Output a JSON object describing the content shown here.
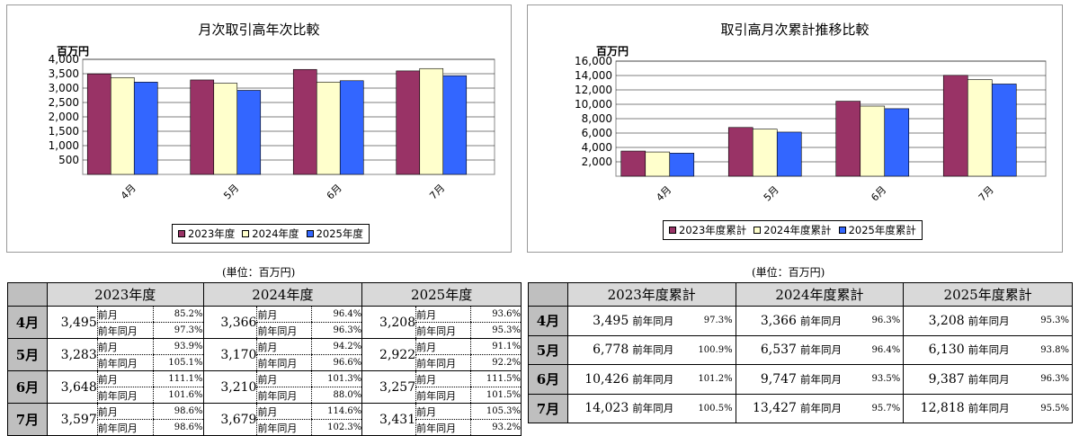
{
  "colors": {
    "series1": "#993366",
    "series2": "#ffffcc",
    "series3": "#3366ff"
  },
  "chart_data": [
    {
      "type": "bar",
      "title": "月次取引高年次比較",
      "ylabel": "百万円",
      "categories": [
        "4月",
        "5月",
        "6月",
        "7月"
      ],
      "ylim": [
        0,
        4000
      ],
      "yticks": [
        "4,000",
        "3,500",
        "3,000",
        "2,500",
        "2,000",
        "1,500",
        "1,000",
        "500"
      ],
      "ytick_values": [
        4000,
        3500,
        3000,
        2500,
        2000,
        1500,
        1000,
        500
      ],
      "series": [
        {
          "name": "2023年度",
          "values": [
            3495,
            3283,
            3648,
            3597
          ]
        },
        {
          "name": "2024年度",
          "values": [
            3366,
            3170,
            3210,
            3679
          ]
        },
        {
          "name": "2025年度",
          "values": [
            3208,
            2922,
            3257,
            3431
          ]
        }
      ],
      "grid": true,
      "legend": "bottom"
    },
    {
      "type": "bar",
      "title": "取引高月次累計推移比較",
      "ylabel": "百万円",
      "categories": [
        "4月",
        "5月",
        "6月",
        "7月"
      ],
      "ylim": [
        0,
        16000
      ],
      "yticks": [
        "16,000",
        "14,000",
        "12,000",
        "10,000",
        "8,000",
        "6,000",
        "4,000",
        "2,000"
      ],
      "ytick_values": [
        16000,
        14000,
        12000,
        10000,
        8000,
        6000,
        4000,
        2000
      ],
      "series": [
        {
          "name": "2023年度累計",
          "values": [
            3495,
            6778,
            10426,
            14023
          ]
        },
        {
          "name": "2024年度累計",
          "values": [
            3366,
            6537,
            9747,
            13427
          ]
        },
        {
          "name": "2025年度累計",
          "values": [
            3208,
            6130,
            9387,
            12818
          ]
        }
      ],
      "grid": true,
      "legend": "bottom"
    }
  ],
  "unit_note": "(単位：百万円)",
  "table1": {
    "headers": [
      "2023年度",
      "2024年度",
      "2025年度"
    ],
    "prev_label": "前月",
    "yoy_label": "前年同月",
    "rows": [
      {
        "month": "4月",
        "cells": [
          {
            "value": "3,495",
            "prev": "85.2%",
            "yoy": "97.3%"
          },
          {
            "value": "3,366",
            "prev": "96.4%",
            "yoy": "96.3%"
          },
          {
            "value": "3,208",
            "prev": "93.6%",
            "yoy": "95.3%"
          }
        ]
      },
      {
        "month": "5月",
        "cells": [
          {
            "value": "3,283",
            "prev": "93.9%",
            "yoy": "105.1%"
          },
          {
            "value": "3,170",
            "prev": "94.2%",
            "yoy": "96.6%"
          },
          {
            "value": "2,922",
            "prev": "91.1%",
            "yoy": "92.2%"
          }
        ]
      },
      {
        "month": "6月",
        "cells": [
          {
            "value": "3,648",
            "prev": "111.1%",
            "yoy": "101.6%"
          },
          {
            "value": "3,210",
            "prev": "101.3%",
            "yoy": "88.0%"
          },
          {
            "value": "3,257",
            "prev": "111.5%",
            "yoy": "101.5%"
          }
        ]
      },
      {
        "month": "7月",
        "cells": [
          {
            "value": "3,597",
            "prev": "98.6%",
            "yoy": "98.6%"
          },
          {
            "value": "3,679",
            "prev": "114.6%",
            "yoy": "102.3%"
          },
          {
            "value": "3,431",
            "prev": "105.3%",
            "yoy": "93.2%"
          }
        ]
      }
    ]
  },
  "table2": {
    "headers": [
      "2023年度累計",
      "2024年度累計",
      "2025年度累計"
    ],
    "yoy_label": "前年同月",
    "rows": [
      {
        "month": "4月",
        "cells": [
          {
            "value": "3,495",
            "yoy": "97.3%"
          },
          {
            "value": "3,366",
            "yoy": "96.3%"
          },
          {
            "value": "3,208",
            "yoy": "95.3%"
          }
        ]
      },
      {
        "month": "5月",
        "cells": [
          {
            "value": "6,778",
            "yoy": "100.9%"
          },
          {
            "value": "6,537",
            "yoy": "96.4%"
          },
          {
            "value": "6,130",
            "yoy": "93.8%"
          }
        ]
      },
      {
        "month": "6月",
        "cells": [
          {
            "value": "10,426",
            "yoy": "101.2%"
          },
          {
            "value": "9,747",
            "yoy": "93.5%"
          },
          {
            "value": "9,387",
            "yoy": "96.3%"
          }
        ]
      },
      {
        "month": "7月",
        "cells": [
          {
            "value": "14,023",
            "yoy": "100.5%"
          },
          {
            "value": "13,427",
            "yoy": "95.7%"
          },
          {
            "value": "12,818",
            "yoy": "95.5%"
          }
        ]
      }
    ]
  }
}
